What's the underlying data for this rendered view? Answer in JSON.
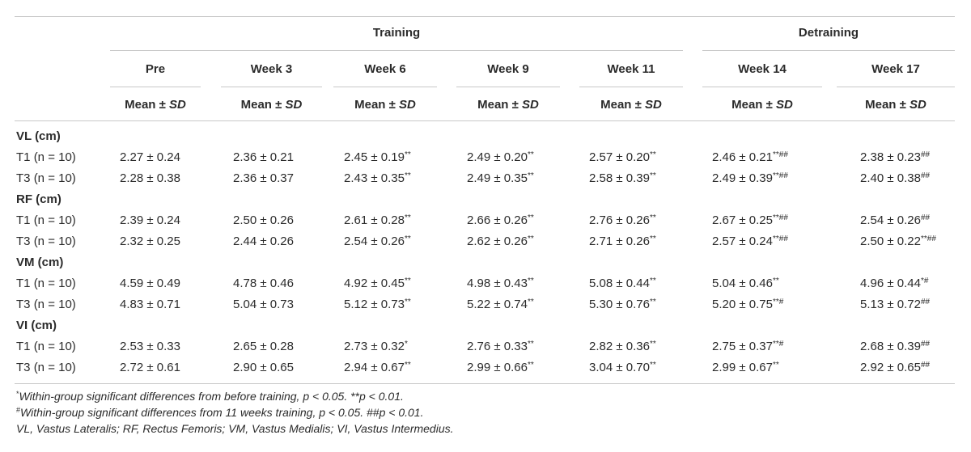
{
  "groups": [
    "Training",
    "Detraining"
  ],
  "columns": [
    "Pre",
    "Week 3",
    "Week 6",
    "Week 9",
    "Week 11",
    "Week 14",
    "Week 17"
  ],
  "mean_sd_label": "Mean ±",
  "sd_italic": "SD",
  "sections": [
    {
      "title": "VL (cm)",
      "rows": [
        {
          "group": "T1",
          "n_label": "(n = 10)",
          "cells": [
            {
              "v": "2.27 ± 0.24",
              "s": ""
            },
            {
              "v": "2.36 ± 0.21",
              "s": ""
            },
            {
              "v": "2.45 ± 0.19",
              "s": "**"
            },
            {
              "v": "2.49 ± 0.20",
              "s": "**"
            },
            {
              "v": "2.57 ± 0.20",
              "s": "**"
            },
            {
              "v": "2.46 ± 0.21",
              "s": "**##"
            },
            {
              "v": "2.38 ± 0.23",
              "s": "##"
            }
          ]
        },
        {
          "group": "T3",
          "n_label": "(n = 10)",
          "cells": [
            {
              "v": "2.28 ± 0.38",
              "s": ""
            },
            {
              "v": "2.36 ± 0.37",
              "s": ""
            },
            {
              "v": "2.43 ± 0.35",
              "s": "**"
            },
            {
              "v": "2.49 ± 0.35",
              "s": "**"
            },
            {
              "v": "2.58 ± 0.39",
              "s": "**"
            },
            {
              "v": "2.49 ± 0.39",
              "s": "**##"
            },
            {
              "v": "2.40 ± 0.38",
              "s": "##"
            }
          ]
        }
      ]
    },
    {
      "title": "RF (cm)",
      "rows": [
        {
          "group": "T1",
          "n_label": "(n = 10)",
          "cells": [
            {
              "v": "2.39 ± 0.24",
              "s": ""
            },
            {
              "v": "2.50 ± 0.26",
              "s": ""
            },
            {
              "v": "2.61 ± 0.28",
              "s": "**"
            },
            {
              "v": "2.66 ± 0.26",
              "s": "**"
            },
            {
              "v": "2.76 ± 0.26",
              "s": "**"
            },
            {
              "v": "2.67 ± 0.25",
              "s": "**##"
            },
            {
              "v": "2.54 ± 0.26",
              "s": "##"
            }
          ]
        },
        {
          "group": "T3",
          "n_label": "(n = 10)",
          "cells": [
            {
              "v": "2.32 ± 0.25",
              "s": ""
            },
            {
              "v": "2.44 ± 0.26",
              "s": ""
            },
            {
              "v": "2.54 ± 0.26",
              "s": "**"
            },
            {
              "v": "2.62 ± 0.26",
              "s": "**"
            },
            {
              "v": "2.71 ± 0.26",
              "s": "**"
            },
            {
              "v": "2.57 ± 0.24",
              "s": "**##"
            },
            {
              "v": "2.50 ± 0.22",
              "s": "**##"
            }
          ]
        }
      ]
    },
    {
      "title": "VM (cm)",
      "rows": [
        {
          "group": "T1",
          "n_label": "(n = 10)",
          "cells": [
            {
              "v": "4.59 ± 0.49",
              "s": ""
            },
            {
              "v": "4.78 ± 0.46",
              "s": ""
            },
            {
              "v": "4.92 ± 0.45",
              "s": "**"
            },
            {
              "v": "4.98 ± 0.43",
              "s": "**"
            },
            {
              "v": "5.08 ± 0.44",
              "s": "**"
            },
            {
              "v": "5.04 ± 0.46",
              "s": "**"
            },
            {
              "v": "4.96 ± 0.44",
              "s": "*#"
            }
          ]
        },
        {
          "group": "T3",
          "n_label": "(n = 10)",
          "cells": [
            {
              "v": "4.83 ± 0.71",
              "s": ""
            },
            {
              "v": "5.04 ± 0.73",
              "s": ""
            },
            {
              "v": "5.12 ± 0.73",
              "s": "**"
            },
            {
              "v": "5.22 ± 0.74",
              "s": "**"
            },
            {
              "v": "5.30 ± 0.76",
              "s": "**"
            },
            {
              "v": "5.20 ± 0.75",
              "s": "**#"
            },
            {
              "v": "5.13 ± 0.72",
              "s": "##"
            }
          ]
        }
      ]
    },
    {
      "title": "VI (cm)",
      "rows": [
        {
          "group": "T1",
          "n_label": "(n = 10)",
          "cells": [
            {
              "v": "2.53 ± 0.33",
              "s": ""
            },
            {
              "v": "2.65 ± 0.28",
              "s": ""
            },
            {
              "v": "2.73 ± 0.32",
              "s": "*"
            },
            {
              "v": "2.76 ± 0.33",
              "s": "**"
            },
            {
              "v": "2.82 ± 0.36",
              "s": "**"
            },
            {
              "v": "2.75 ± 0.37",
              "s": "**#"
            },
            {
              "v": "2.68 ± 0.39",
              "s": "##"
            }
          ]
        },
        {
          "group": "T3",
          "n_label": "(n = 10)",
          "cells": [
            {
              "v": "2.72 ± 0.61",
              "s": ""
            },
            {
              "v": "2.90 ± 0.65",
              "s": ""
            },
            {
              "v": "2.94 ± 0.67",
              "s": "**"
            },
            {
              "v": "2.99 ± 0.66",
              "s": "**"
            },
            {
              "v": "3.04 ± 0.70",
              "s": "**"
            },
            {
              "v": "2.99 ± 0.67",
              "s": "**"
            },
            {
              "v": "2.92 ± 0.65",
              "s": "##"
            }
          ]
        }
      ]
    }
  ],
  "footnotes": [
    {
      "mark": "*",
      "text": "Within-group significant differences from before training, p < 0.05. **p < 0.01."
    },
    {
      "mark": "#",
      "text": "Within-group significant differences from 11 weeks training, p < 0.05. ##p < 0.01."
    },
    {
      "mark": "",
      "text": "VL, Vastus Lateralis; RF, Rectus Femoris; VM, Vastus Medialis; VI, Vastus Intermedius."
    }
  ]
}
